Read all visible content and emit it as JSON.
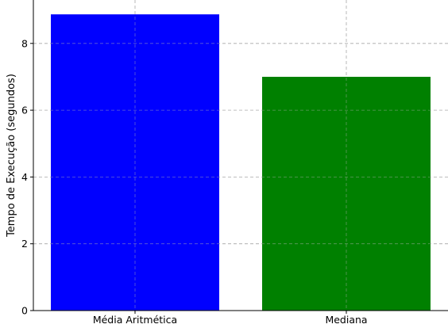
{
  "chart_data": {
    "type": "bar",
    "title": "",
    "xlabel": "",
    "ylabel": "Tempo de Execução (segundos)",
    "categories": [
      "Média Aritmética",
      "Mediana"
    ],
    "values": [
      8.87,
      7.0
    ],
    "colors": [
      "#0000ff",
      "#008000"
    ],
    "ylim": [
      0,
      9.3
    ],
    "yticks": [
      "0",
      "2",
      "4",
      "6",
      "8"
    ],
    "grid": true
  }
}
